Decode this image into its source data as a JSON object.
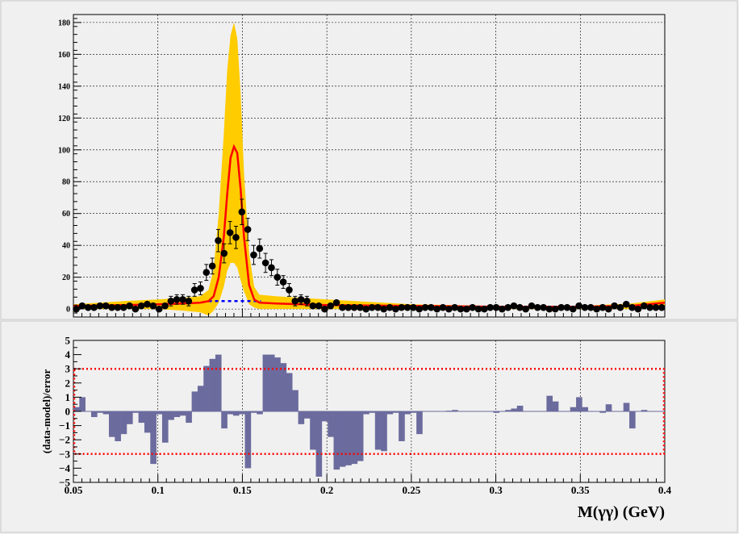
{
  "chart_data": [
    {
      "type": "scatter",
      "panel": "fit",
      "xlim": [
        0.05,
        0.4
      ],
      "ylim": [
        -5,
        185
      ],
      "yticks": [
        0,
        20,
        40,
        60,
        80,
        100,
        120,
        140,
        160,
        180
      ],
      "grid": true,
      "series": [
        {
          "role": "data-points",
          "color": "#000000",
          "x": [
            0.0517,
            0.0552,
            0.0587,
            0.0622,
            0.0657,
            0.0692,
            0.0727,
            0.0762,
            0.0797,
            0.0832,
            0.0867,
            0.0902,
            0.0937,
            0.0972,
            0.1007,
            0.1042,
            0.1077,
            0.1112,
            0.1147,
            0.1182,
            0.1217,
            0.1252,
            0.1287,
            0.1322,
            0.1357,
            0.1392,
            0.1427,
            0.1462,
            0.1497,
            0.1532,
            0.1567,
            0.1602,
            0.1637,
            0.1672,
            0.1707,
            0.1742,
            0.1777,
            0.1812,
            0.1847,
            0.1882,
            0.1917,
            0.1952,
            0.1987,
            0.2022,
            0.2057,
            0.2092,
            0.2127,
            0.2162,
            0.2197,
            0.2232,
            0.2267,
            0.2302,
            0.2337,
            0.2372,
            0.2407,
            0.2442,
            0.2477,
            0.2512,
            0.2547,
            0.2582,
            0.2617,
            0.2652,
            0.2687,
            0.2722,
            0.2757,
            0.2792,
            0.2827,
            0.2862,
            0.2897,
            0.2932,
            0.2967,
            0.3002,
            0.3037,
            0.3072,
            0.3107,
            0.3142,
            0.3177,
            0.3212,
            0.3247,
            0.3282,
            0.3317,
            0.3352,
            0.3387,
            0.3422,
            0.3457,
            0.3492,
            0.3527,
            0.3562,
            0.3597,
            0.3632,
            0.3667,
            0.3702,
            0.3737,
            0.3772,
            0.3807,
            0.3842,
            0.3877,
            0.3912,
            0.3947,
            0.3982
          ],
          "y": [
            0,
            2,
            1,
            1,
            2,
            2,
            1,
            1,
            1,
            2,
            0,
            2,
            3,
            2,
            0,
            2,
            5,
            6,
            6,
            5,
            12,
            13,
            23,
            27,
            43,
            35,
            48,
            45,
            61,
            50,
            34,
            38,
            29,
            26,
            20,
            17,
            12,
            5,
            6,
            5,
            2,
            2,
            0,
            2,
            4,
            1,
            1,
            1,
            1,
            0,
            1,
            1,
            0,
            1,
            0,
            1,
            1,
            1,
            0,
            1,
            1,
            0,
            1,
            0,
            1,
            0,
            0,
            1,
            0,
            0,
            1,
            1,
            0,
            1,
            2,
            1,
            0,
            2,
            1,
            1,
            0,
            0,
            1,
            1,
            0,
            2,
            1,
            1,
            0,
            1,
            0,
            2,
            1,
            3,
            1,
            0,
            2,
            1,
            1,
            1
          ],
          "err": [
            2,
            2,
            2,
            2,
            2,
            2,
            2,
            2,
            2,
            2,
            2,
            2,
            2,
            2,
            2,
            2,
            3,
            3,
            3,
            3,
            4,
            4,
            5,
            5,
            7,
            6,
            7,
            7,
            8,
            7,
            6,
            6,
            6,
            5,
            5,
            4,
            4,
            3,
            3,
            3,
            2,
            2,
            2,
            2,
            2,
            2,
            2,
            2,
            2,
            2,
            2,
            2,
            2,
            2,
            2,
            2,
            2,
            2,
            2,
            2,
            2,
            2,
            2,
            2,
            2,
            2,
            2,
            2,
            2,
            2,
            2,
            2,
            2,
            2,
            2,
            2,
            2,
            2,
            2,
            2,
            2,
            2,
            2,
            2,
            2,
            2,
            2,
            2,
            2,
            2,
            2,
            2,
            2,
            2,
            2,
            2,
            2,
            2,
            2,
            2
          ]
        },
        {
          "role": "model-curve",
          "color": "#ff0000",
          "x": [
            0.05,
            0.08,
            0.1,
            0.115,
            0.125,
            0.13,
            0.133,
            0.136,
            0.139,
            0.141,
            0.143,
            0.145,
            0.147,
            0.149,
            0.151,
            0.154,
            0.157,
            0.16,
            0.17,
            0.2,
            0.25,
            0.3,
            0.35,
            0.38,
            0.4
          ],
          "y": [
            2,
            2.5,
            3,
            3.5,
            4,
            5,
            8,
            20,
            45,
            72,
            95,
            102,
            98,
            75,
            45,
            15,
            6,
            4,
            3.5,
            2.5,
            2,
            1.5,
            1.5,
            2,
            4
          ]
        },
        {
          "role": "background-curve",
          "color": "#0000ff",
          "x": [
            0.13,
            0.161
          ],
          "y": [
            5,
            5
          ]
        },
        {
          "role": "uncertainty-band",
          "color": "#ffcc00",
          "x": [
            0.05,
            0.08,
            0.1,
            0.115,
            0.125,
            0.13,
            0.133,
            0.136,
            0.139,
            0.141,
            0.143,
            0.145,
            0.147,
            0.149,
            0.151,
            0.154,
            0.157,
            0.16,
            0.17,
            0.2,
            0.25,
            0.3,
            0.35,
            0.38,
            0.4
          ],
          "upper": [
            3,
            5,
            6,
            7,
            8,
            12,
            25,
            60,
            110,
            150,
            172,
            180,
            170,
            135,
            85,
            35,
            14,
            9,
            8,
            6,
            3,
            2,
            2,
            3.5,
            6
          ],
          "lower": [
            0,
            0,
            0,
            -1,
            -2,
            -4,
            -1,
            4,
            14,
            24,
            29,
            29,
            26,
            18,
            11,
            3,
            1,
            0,
            0,
            0,
            0,
            0,
            0,
            0,
            2
          ]
        }
      ]
    },
    {
      "type": "bar",
      "panel": "residuals",
      "ylabel": "(data-model)/error",
      "xlabel": "M(γγ) (GeV)",
      "xlim": [
        0.05,
        0.4
      ],
      "ylim": [
        -5,
        5
      ],
      "xticks": [
        0.05,
        0.1,
        0.15,
        0.2,
        0.25,
        0.3,
        0.35,
        0.4
      ],
      "xtick_labels": [
        "0.05",
        "0.1",
        "0.15",
        "0.2",
        "0.25",
        "0.3",
        "0.35",
        "0.4"
      ],
      "yticks": [
        -5,
        -4,
        -3,
        -2,
        -1,
        0,
        1,
        2,
        3,
        4,
        5
      ],
      "reference_lines": [
        -3,
        3
      ],
      "reference_line_color": "#ff0000",
      "bar_color": "#6b6b9e",
      "grid": true,
      "bin_width": 0.0035,
      "bin_start": 0.05,
      "values": [
        0.3,
        1.0,
        0.0,
        -0.4,
        -0.1,
        -0.2,
        -1.8,
        -2.1,
        -1.6,
        -0.9,
        -0.1,
        -0.8,
        -1.5,
        -3.7,
        -0.2,
        -2.2,
        -0.6,
        -0.4,
        -0.3,
        -0.8,
        1.4,
        1.8,
        3.2,
        3.7,
        4.0,
        -1.2,
        -0.2,
        -0.3,
        -0.2,
        -4.0,
        -0.1,
        -0.2,
        4.0,
        4.0,
        3.8,
        3.4,
        2.7,
        1.5,
        -0.9,
        -0.5,
        -2.7,
        -4.6,
        -0.7,
        -1.8,
        -4.1,
        -3.9,
        -3.8,
        -3.7,
        -3.5,
        -0.2,
        -0.1,
        -2.7,
        -2.8,
        -0.2,
        -0.1,
        -2.1,
        -0.2,
        -0.1,
        -1.6,
        0.0,
        0.0,
        0.0,
        0.0,
        0.05,
        0.1,
        0.0,
        0.0,
        0.0,
        0.0,
        0.0,
        0.0,
        -0.1,
        0.0,
        0.1,
        0.2,
        0.4,
        0.0,
        0.0,
        0.0,
        0.0,
        1.1,
        0.7,
        0.0,
        0.0,
        0.3,
        1.0,
        0.3,
        0.0,
        0.0,
        -0.1,
        0.5,
        0.0,
        0.0,
        0.6,
        -1.2,
        0.0,
        0.1,
        0.0,
        0.0,
        0.0
      ]
    }
  ],
  "top_panel": {
    "ytick_labels": [
      "0",
      "20",
      "40",
      "60",
      "80",
      "100",
      "120",
      "140",
      "160",
      "180"
    ]
  },
  "bottom_panel": {
    "ytick_labels": [
      "−5",
      "−4",
      "−3",
      "−2",
      "−1",
      "0",
      "1",
      "2",
      "3",
      "4",
      "5"
    ],
    "xtick_labels": [
      "0.05",
      "0.1",
      "0.15",
      "0.2",
      "0.25",
      "0.3",
      "0.35",
      "0.4"
    ],
    "ylabel": "(data-model)/error",
    "xlabel": "M(γγ) (GeV)"
  }
}
